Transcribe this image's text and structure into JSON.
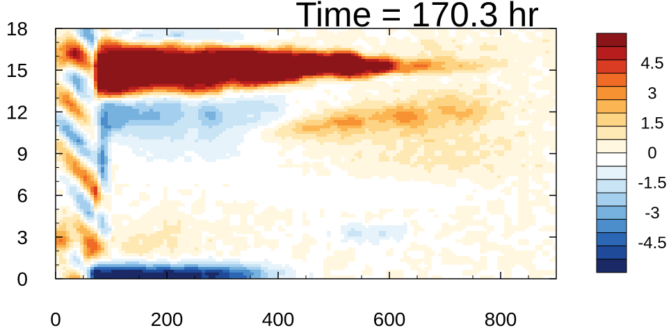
{
  "chart_data": {
    "type": "heatmap",
    "title": "Time = 170.3 hr",
    "xlabel": "",
    "ylabel": "",
    "xlim": [
      0,
      900
    ],
    "ylim": [
      0,
      18
    ],
    "x_ticks": [
      0,
      200,
      400,
      600,
      800
    ],
    "x_tick_labels": [
      "0",
      "200",
      "400",
      "600",
      "800"
    ],
    "y_ticks": [
      0,
      3,
      6,
      9,
      12,
      15,
      18
    ],
    "y_tick_labels": [
      "0",
      "3",
      "6",
      "9",
      "12",
      "15",
      "18"
    ],
    "colorbar": {
      "min": -6,
      "max": 6,
      "step": 0.75,
      "tick_labels": [
        "4.5",
        "3",
        "1.5",
        "0",
        "-1.5",
        "-3",
        "-4.5"
      ],
      "tick_values": [
        4.5,
        3,
        1.5,
        0,
        -1.5,
        -3,
        -4.5
      ],
      "colors": [
        "#1b2a66",
        "#1f4a9a",
        "#2c67b6",
        "#4b8ecb",
        "#77b1de",
        "#a4cfee",
        "#c9e4f5",
        "#e6f3fb",
        "#ffffff",
        "#fff7df",
        "#fee8b4",
        "#fdd384",
        "#fbb552",
        "#f79233",
        "#ef6b26",
        "#da3b23",
        "#b81d1d",
        "#8b1519"
      ]
    },
    "features": [
      {
        "name": "upper-red-jet",
        "x_range": [
          70,
          600
        ],
        "y_center": 15.1,
        "y_half_width_at_start": 1.8,
        "value": 6.5
      },
      {
        "name": "blue-band-below-jet",
        "x_range": [
          80,
          420
        ],
        "y_center": 11.8,
        "value": -3.5
      },
      {
        "name": "orange-band",
        "x_range": [
          350,
          760
        ],
        "y_center": 11.2,
        "value": 2.5
      },
      {
        "name": "bottom-blue-band",
        "x_range": [
          60,
          350
        ],
        "y_center": 0.4,
        "value": -5.5
      },
      {
        "name": "left-oscillating-front",
        "x_range": [
          0,
          90
        ],
        "y_range": [
          0,
          17
        ],
        "value": 4
      }
    ]
  }
}
